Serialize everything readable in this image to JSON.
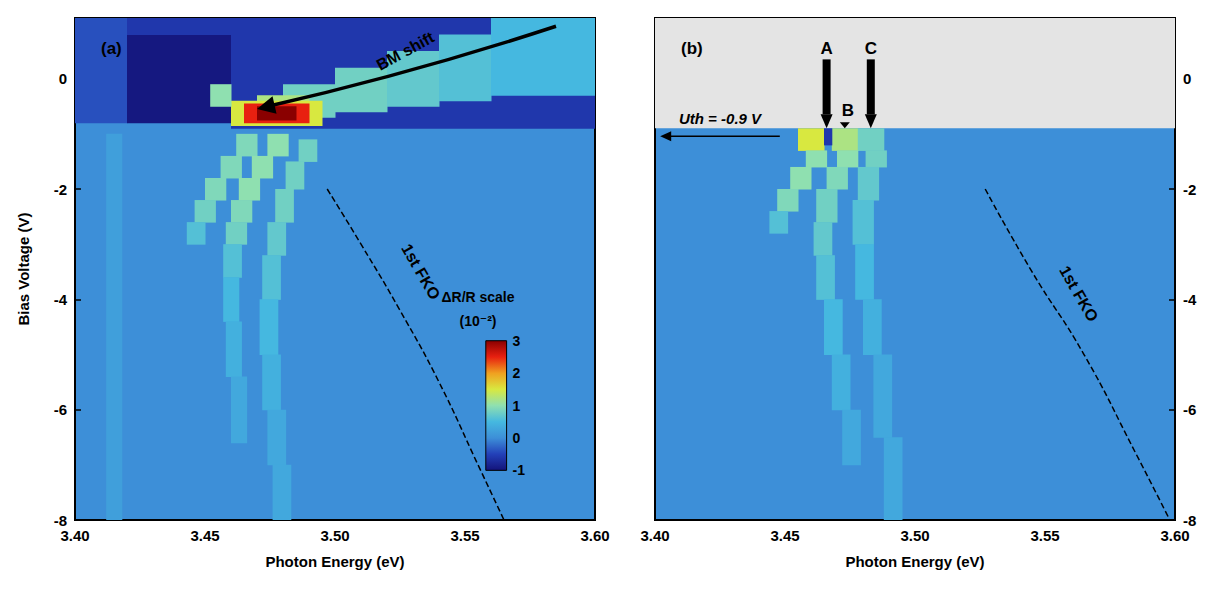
{
  "chart_data": [
    {
      "type": "heatmap",
      "label": "(a)",
      "x_label": "Photon Energy (eV)",
      "y_label": "Bias Voltage (V)",
      "xlim": [
        3.4,
        3.6
      ],
      "ylim": [
        -8,
        1.1
      ],
      "xticks": [
        {
          "value": 3.4,
          "label": "3.40"
        },
        3.45,
        {
          "value": 3.5,
          "label": "3.50"
        },
        3.55,
        {
          "value": 3.6,
          "label": "3.60"
        }
      ],
      "yticks": [
        -8,
        -6,
        -4,
        -2,
        0
      ],
      "cells": [
        [
          3.4,
          3.42,
          -0.8,
          1.1,
          -0.4
        ],
        [
          3.42,
          3.46,
          -0.8,
          0.8,
          -0.95
        ],
        [
          3.42,
          3.46,
          0.8,
          1.1,
          -0.6
        ],
        [
          3.46,
          3.6,
          -0.9,
          1.1,
          -0.6
        ],
        [
          3.48,
          3.5,
          -0.7,
          -0.1,
          0.8
        ],
        [
          3.5,
          3.52,
          -0.6,
          0.2,
          0.8
        ],
        [
          3.52,
          3.54,
          -0.5,
          0.5,
          0.7
        ],
        [
          3.54,
          3.56,
          -0.4,
          0.8,
          0.6
        ],
        [
          3.56,
          3.6,
          -0.3,
          1.1,
          0.5
        ],
        [
          3.47,
          3.49,
          -0.6,
          -0.3,
          1.2
        ],
        [
          3.46,
          3.495,
          -0.85,
          -0.4,
          1.5
        ],
        [
          3.465,
          3.49,
          -0.8,
          -0.45,
          2.5
        ],
        [
          3.47,
          3.485,
          -0.75,
          -0.5,
          3
        ],
        [
          3.452,
          3.46,
          -0.5,
          -0.1,
          1
        ],
        [
          3.412,
          3.418,
          -8,
          -1,
          0.2
        ],
        [
          3.462,
          3.47,
          -1.4,
          -1.0,
          0.9
        ],
        [
          3.456,
          3.464,
          -1.8,
          -1.4,
          0.9
        ],
        [
          3.45,
          3.458,
          -2.2,
          -1.8,
          0.9
        ],
        [
          3.446,
          3.454,
          -2.6,
          -2.2,
          0.8
        ],
        [
          3.443,
          3.45,
          -3.0,
          -2.6,
          0.6
        ],
        [
          3.474,
          3.482,
          -1.4,
          -1.0,
          1
        ],
        [
          3.468,
          3.476,
          -1.8,
          -1.4,
          1
        ],
        [
          3.463,
          3.471,
          -2.2,
          -1.8,
          1
        ],
        [
          3.46,
          3.468,
          -2.6,
          -2.2,
          0.9
        ],
        [
          3.458,
          3.466,
          -3.0,
          -2.6,
          0.8
        ],
        [
          3.457,
          3.464,
          -3.6,
          -3.0,
          0.6
        ],
        [
          3.457,
          3.463,
          -4.4,
          -3.6,
          0.5
        ],
        [
          3.458,
          3.464,
          -5.4,
          -4.4,
          0.4
        ],
        [
          3.46,
          3.466,
          -6.6,
          -5.4,
          0.3
        ],
        [
          3.486,
          3.493,
          -1.5,
          -1.1,
          0.8
        ],
        [
          3.481,
          3.488,
          -2.0,
          -1.5,
          0.8
        ],
        [
          3.477,
          3.484,
          -2.6,
          -2.0,
          0.8
        ],
        [
          3.474,
          3.481,
          -3.2,
          -2.6,
          0.7
        ],
        [
          3.472,
          3.479,
          -4.0,
          -3.2,
          0.6
        ],
        [
          3.471,
          3.478,
          -5.0,
          -4.0,
          0.5
        ],
        [
          3.472,
          3.479,
          -6.0,
          -5.0,
          0.4
        ],
        [
          3.474,
          3.481,
          -7.0,
          -6.0,
          0.3
        ],
        [
          3.476,
          3.483,
          -8.0,
          -7.0,
          0.3
        ]
      ],
      "fko": {
        "label": "1st FKO",
        "x": [
          3.497,
          3.51,
          3.525,
          3.54,
          3.555,
          3.565
        ],
        "y": [
          -2,
          -3,
          -4.2,
          -5.5,
          -7,
          -8
        ]
      },
      "annotation": "BM shift",
      "colorbar": {
        "title": "ΔR/R scale",
        "unit": "(10⁻²)",
        "range": [
          -1,
          3
        ],
        "ticks": [
          -1,
          0,
          1,
          2,
          3
        ]
      }
    },
    {
      "type": "heatmap",
      "label": "(b)",
      "x_label": "Photon Energy (eV)",
      "xlim": [
        3.4,
        3.6
      ],
      "ylim": [
        -8,
        1.1
      ],
      "xticks": [
        {
          "value": 3.4,
          "label": "3.40"
        },
        3.45,
        {
          "value": 3.5,
          "label": "3.50"
        },
        3.55,
        {
          "value": 3.6,
          "label": "3.60"
        }
      ],
      "yticks": [
        -8,
        -6,
        -4,
        -2,
        0
      ],
      "cells": [
        [
          3.455,
          3.465,
          -1.3,
          -0.9,
          1.5
        ],
        [
          3.468,
          3.478,
          -1.3,
          -0.9,
          1.2
        ],
        [
          3.478,
          3.488,
          -1.3,
          -0.9,
          0.8
        ],
        [
          3.465,
          3.468,
          -1.2,
          -0.9,
          -0.6
        ],
        [
          3.458,
          3.466,
          -1.6,
          -1.3,
          1
        ],
        [
          3.452,
          3.46,
          -2.0,
          -1.6,
          1
        ],
        [
          3.447,
          3.455,
          -2.4,
          -2.0,
          0.9
        ],
        [
          3.444,
          3.451,
          -2.8,
          -2.4,
          0.6
        ],
        [
          3.47,
          3.478,
          -1.6,
          -1.3,
          1
        ],
        [
          3.466,
          3.474,
          -2.0,
          -1.6,
          0.9
        ],
        [
          3.462,
          3.47,
          -2.6,
          -2.0,
          0.8
        ],
        [
          3.461,
          3.468,
          -3.2,
          -2.6,
          0.7
        ],
        [
          3.462,
          3.469,
          -4.0,
          -3.2,
          0.6
        ],
        [
          3.465,
          3.472,
          -5.0,
          -4.0,
          0.5
        ],
        [
          3.468,
          3.475,
          -6.0,
          -5.0,
          0.4
        ],
        [
          3.472,
          3.479,
          -7.0,
          -6.0,
          0.3
        ],
        [
          3.481,
          3.489,
          -1.6,
          -1.3,
          0.8
        ],
        [
          3.478,
          3.486,
          -2.2,
          -1.6,
          0.7
        ],
        [
          3.476,
          3.484,
          -3.0,
          -2.2,
          0.6
        ],
        [
          3.477,
          3.484,
          -4.0,
          -3.0,
          0.5
        ],
        [
          3.48,
          3.487,
          -5.0,
          -4.0,
          0.4
        ],
        [
          3.484,
          3.491,
          -6.5,
          -5.0,
          0.3
        ],
        [
          3.488,
          3.495,
          -8.0,
          -6.5,
          0.3
        ]
      ],
      "fko": {
        "label": "1st FKO",
        "x": [
          3.527,
          3.545,
          3.565,
          3.585,
          3.598
        ],
        "y": [
          -2,
          -3.5,
          -5,
          -6.8,
          -8
        ]
      },
      "threshold": {
        "label": "Uth = -0.9 V",
        "value": -0.9
      },
      "transitions": [
        {
          "label": "A",
          "x": 3.466
        },
        {
          "label": "B",
          "x": 3.473
        },
        {
          "label": "C",
          "x": 3.483
        }
      ]
    }
  ]
}
